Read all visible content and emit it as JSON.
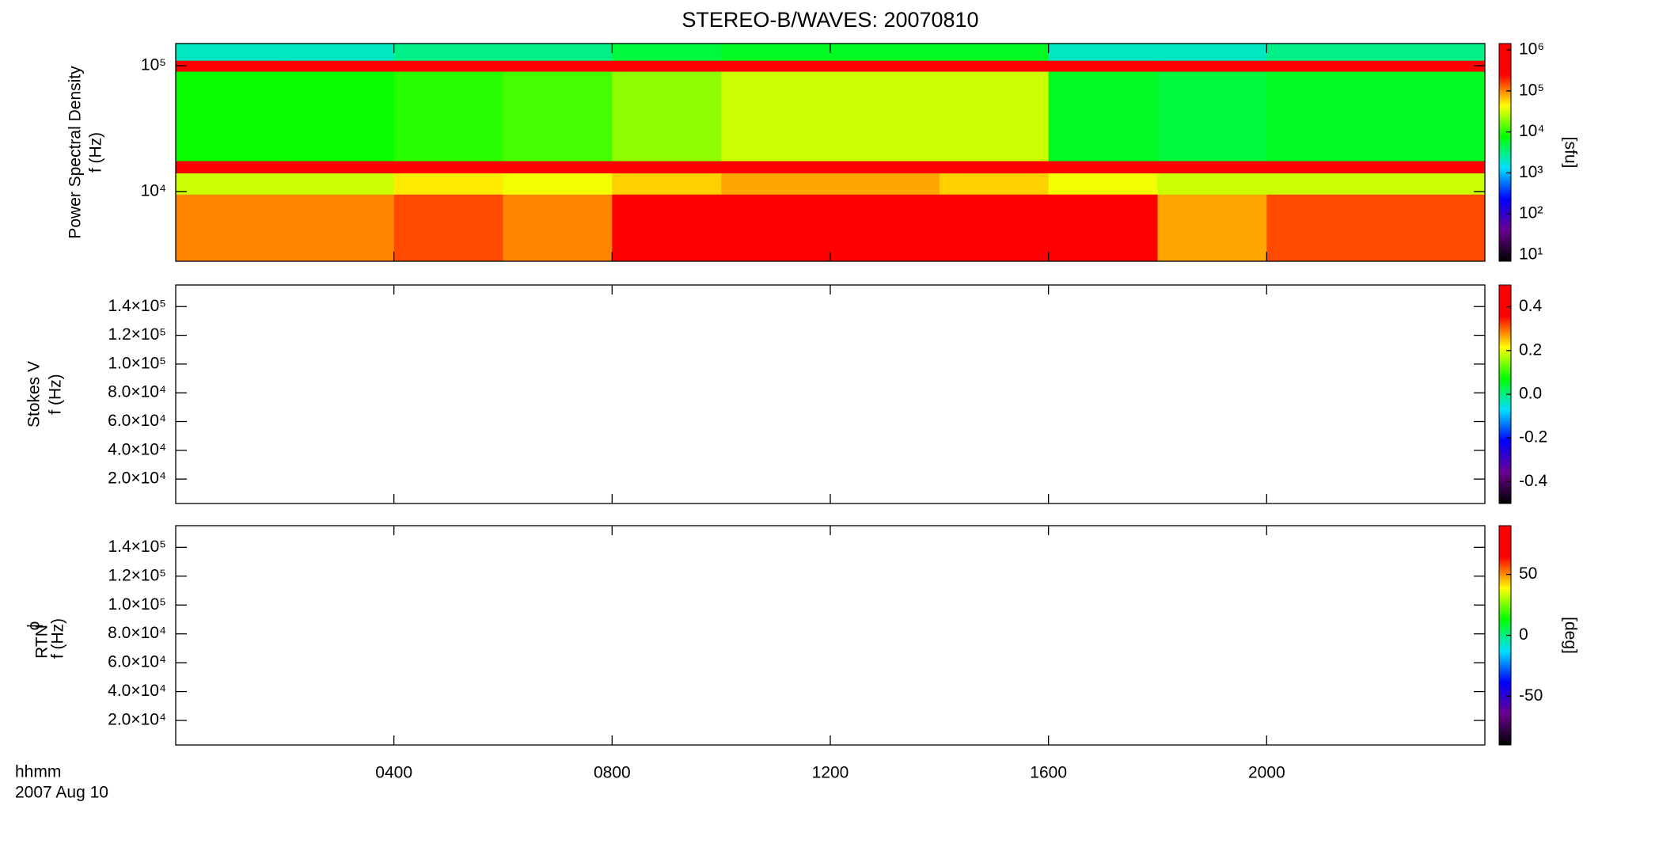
{
  "title": "STEREO-B/WAVES: 20070810",
  "x_axis_label": "hhmm",
  "date_label": "2007 Aug 10",
  "chart_data": [
    {
      "type": "heatmap",
      "ylabel": [
        "Power Spectral Density",
        "f (Hz)"
      ],
      "ylog": true,
      "xlim": [
        0,
        24
      ],
      "xticks": [
        {
          "value": 4,
          "label": "0400"
        },
        {
          "value": 8,
          "label": "0800"
        },
        {
          "value": 12,
          "label": "1200"
        },
        {
          "value": 16,
          "label": "1600"
        },
        {
          "value": 20,
          "label": "2000"
        }
      ],
      "ylim": [
        2790,
        150000
      ],
      "yticks": [
        {
          "value": 10000,
          "label": "10⁴"
        },
        {
          "value": 100000,
          "label": "10⁵"
        }
      ],
      "time_bins": [
        0,
        2,
        4,
        6,
        8,
        10,
        12,
        14,
        16,
        18,
        20,
        22,
        24
      ],
      "freq_bins": [
        2790,
        9500,
        14000,
        17500,
        90000,
        110000,
        150000
      ],
      "values": [
        [
          100000,
          100000,
          150000,
          100000,
          250000,
          300000,
          300000,
          250000,
          300000,
          80000,
          150000,
          150000
        ],
        [
          30000,
          30000,
          50000,
          40000,
          60000,
          80000,
          80000,
          60000,
          40000,
          30000,
          30000,
          30000
        ],
        [
          1000000,
          1000000,
          1000000,
          1000000,
          1000000,
          1000000,
          1000000,
          1000000,
          1000000,
          1000000,
          1000000,
          1000000
        ],
        [
          8000,
          8000,
          10000,
          12000,
          20000,
          30000,
          30000,
          30000,
          6000,
          5000,
          6000,
          6000
        ],
        [
          600000,
          600000,
          600000,
          600000,
          600000,
          600000,
          600000,
          600000,
          600000,
          600000,
          600000,
          600000
        ],
        [
          2000,
          2000,
          3000,
          3000,
          5000,
          6000,
          6000,
          6000,
          2000,
          2000,
          3000,
          3000
        ]
      ],
      "colorbar": {
        "label": "[sfu]",
        "log": true,
        "clim": [
          7,
          1430000
        ],
        "ticks": [
          {
            "value": 10,
            "label": "10¹"
          },
          {
            "value": 100,
            "label": "10²"
          },
          {
            "value": 1000,
            "label": "10³"
          },
          {
            "value": 10000,
            "label": "10⁴"
          },
          {
            "value": 100000,
            "label": "10⁵"
          },
          {
            "value": 1000000,
            "label": "10⁶"
          }
        ],
        "colormap": [
          "#000000",
          "#6a0090",
          "#0000ff",
          "#00e0ff",
          "#00ff00",
          "#ffff00",
          "#ff0000",
          "#ff0000"
        ]
      }
    },
    {
      "type": "heatmap",
      "ylabel": [
        "Stokes V",
        "f (Hz)"
      ],
      "ylog": false,
      "xlim": [
        0,
        24
      ],
      "xticks": [
        {
          "value": 4,
          "label": "0400"
        },
        {
          "value": 8,
          "label": "0800"
        },
        {
          "value": 12,
          "label": "1200"
        },
        {
          "value": 16,
          "label": "1600"
        },
        {
          "value": 20,
          "label": "2000"
        }
      ],
      "ylim": [
        3000,
        155000
      ],
      "yticks": [
        {
          "value": 20000,
          "label": "2.0×10⁴"
        },
        {
          "value": 40000,
          "label": "4.0×10⁴"
        },
        {
          "value": 60000,
          "label": "6.0×10⁴"
        },
        {
          "value": 80000,
          "label": "8.0×10⁴"
        },
        {
          "value": 100000,
          "label": "1.0×10⁵"
        },
        {
          "value": 120000,
          "label": "1.2×10⁵"
        },
        {
          "value": 140000,
          "label": "1.4×10⁵"
        }
      ],
      "colorbar": {
        "log": false,
        "clim": [
          -0.5,
          0.5
        ],
        "ticks": [
          -0.4,
          -0.2,
          {
            "value": 0,
            "label": "0.0"
          },
          0.2,
          0.4
        ],
        "colormap": [
          "#000000",
          "#6a0090",
          "#0000ff",
          "#00e0ff",
          "#00ff00",
          "#ffff00",
          "#ff0000",
          "#ff0000"
        ]
      }
    },
    {
      "type": "heatmap",
      "ylabel": [
        "ϕ",
        "RTN",
        "f (Hz)"
      ],
      "ylog": false,
      "xlim": [
        0,
        24
      ],
      "xticks": [
        {
          "value": 4,
          "label": "0400"
        },
        {
          "value": 8,
          "label": "0800"
        },
        {
          "value": 12,
          "label": "1200"
        },
        {
          "value": 16,
          "label": "1600"
        },
        {
          "value": 20,
          "label": "2000"
        }
      ],
      "ylim": [
        3000,
        155000
      ],
      "yticks": [
        {
          "value": 20000,
          "label": "2.0×10⁴"
        },
        {
          "value": 40000,
          "label": "4.0×10⁴"
        },
        {
          "value": 60000,
          "label": "6.0×10⁴"
        },
        {
          "value": 80000,
          "label": "8.0×10⁴"
        },
        {
          "value": 100000,
          "label": "1.0×10⁵"
        },
        {
          "value": 120000,
          "label": "1.2×10⁵"
        },
        {
          "value": 140000,
          "label": "1.4×10⁵"
        }
      ],
      "colorbar": {
        "label": "[deg]",
        "log": false,
        "clim": [
          -90,
          90
        ],
        "ticks": [
          -50,
          0,
          50
        ],
        "colormap": [
          "#000000",
          "#6a0090",
          "#0000ff",
          "#00e0ff",
          "#00ff00",
          "#ffff00",
          "#ff0000",
          "#ff0000"
        ]
      }
    }
  ]
}
